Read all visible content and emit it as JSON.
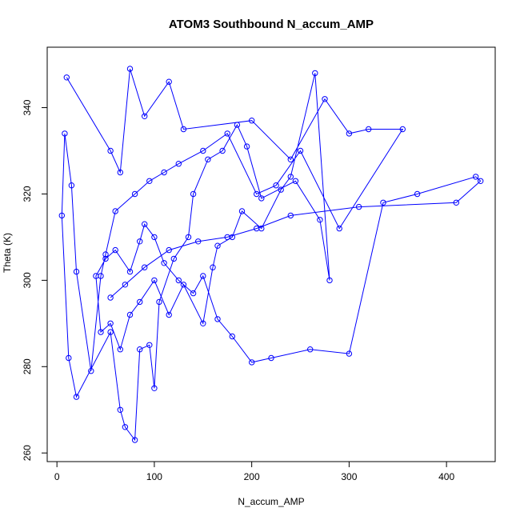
{
  "colors": {
    "series": "#0000ff",
    "axis": "#000000",
    "background": "#ffffff"
  },
  "chart_data": {
    "type": "line",
    "title": "ATOM3 Southbound N_accum_AMP",
    "xlabel": "N_accum_AMP",
    "ylabel": "Theta (K)",
    "xlim": [
      -10,
      450
    ],
    "ylim": [
      258,
      354
    ],
    "xticks": [
      0,
      100,
      200,
      300,
      400
    ],
    "yticks": [
      260,
      280,
      300,
      320,
      340
    ],
    "xtick_labels": [
      "0",
      "100",
      "200",
      "300",
      "400"
    ],
    "ytick_labels": [
      "260",
      "280",
      "300",
      "320",
      "340"
    ],
    "grid": false,
    "legend": "none",
    "markers": "open-circle",
    "series": [
      {
        "x": [
          10,
          55,
          65,
          75,
          90,
          115,
          130,
          200,
          240,
          275,
          300,
          320,
          355,
          290,
          250,
          225,
          205,
          175,
          150,
          125,
          110,
          95,
          80,
          60,
          50,
          45,
          35,
          20,
          15,
          8,
          5,
          12,
          20,
          55,
          65,
          70,
          80,
          85,
          95,
          100,
          105,
          120,
          135,
          140,
          155,
          170,
          185,
          195,
          210,
          245,
          270,
          280,
          265,
          240,
          230,
          210,
          190,
          180,
          165,
          160,
          150,
          130,
          115,
          100,
          85,
          75,
          65,
          55,
          45,
          40,
          50,
          60,
          75,
          85,
          90,
          100,
          110,
          125,
          140,
          150,
          165,
          180,
          200,
          220,
          260,
          300,
          335,
          370,
          430,
          435,
          410,
          310,
          240,
          205,
          175,
          145,
          115,
          90,
          70,
          55
        ],
        "y": [
          347,
          330,
          325,
          349,
          338,
          346,
          335,
          337,
          328,
          342,
          334,
          335,
          335,
          312,
          330,
          322,
          320,
          334,
          330,
          327,
          325,
          323,
          320,
          316,
          306,
          301,
          279,
          302,
          322,
          334,
          315,
          282,
          273,
          288,
          270,
          266,
          263,
          284,
          285,
          275,
          295,
          305,
          310,
          320,
          328,
          330,
          336,
          331,
          319,
          323,
          314,
          300,
          348,
          324,
          321,
          312,
          316,
          310,
          308,
          303,
          290,
          299,
          292,
          300,
          295,
          292,
          284,
          290,
          288,
          301,
          305,
          307,
          302,
          309,
          313,
          310,
          304,
          300,
          297,
          301,
          291,
          287,
          281,
          282,
          284,
          283,
          318,
          320,
          324,
          323,
          318,
          317,
          315,
          312,
          310,
          309,
          307,
          303,
          299,
          296
        ]
      }
    ]
  }
}
